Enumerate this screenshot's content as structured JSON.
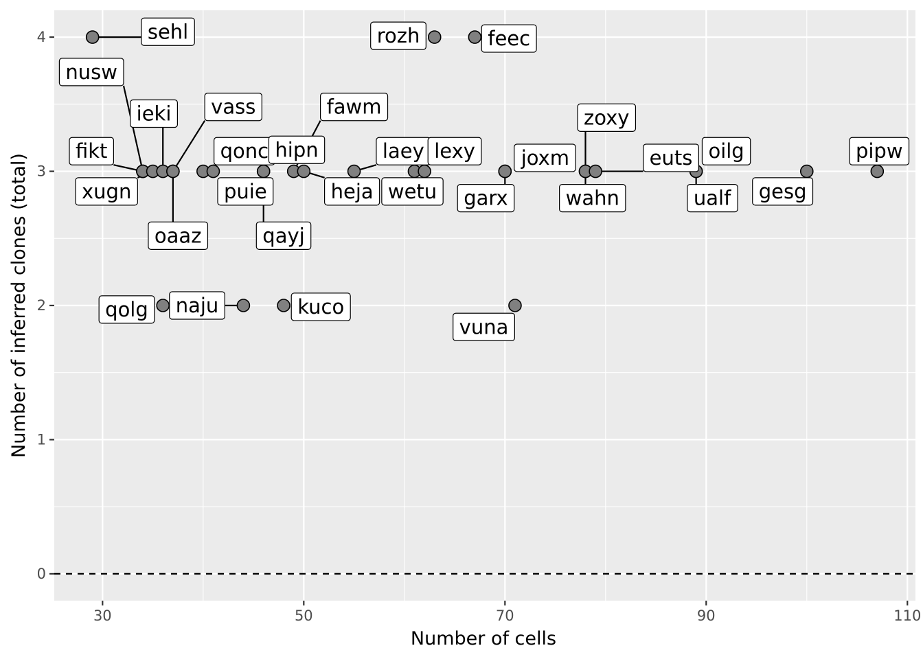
{
  "chart_data": {
    "type": "scatter",
    "title": "",
    "xlabel": "Number of cells",
    "ylabel": "Number of inferred clones (total)",
    "xlim": [
      25.2,
      110.8
    ],
    "ylim": [
      -0.2,
      4.2
    ],
    "x_ticks": [
      30,
      50,
      70,
      90,
      110
    ],
    "x_minor": [
      40,
      60,
      80,
      100
    ],
    "y_ticks": [
      0,
      1,
      2,
      3,
      4
    ],
    "y_minor": [
      0.5,
      1.5,
      2.5,
      3.5
    ],
    "grid": true,
    "legend": "none",
    "reference_line": {
      "y": 0,
      "style": "dashed"
    },
    "colors": {
      "panel": "#ebebeb",
      "point_fill": "#808080",
      "point_stroke": "#000000",
      "grid": "#ffffff",
      "label_box": "#ffffff"
    },
    "points": [
      {
        "name": "sehl",
        "x": 29,
        "y": 4,
        "lx": 36.5,
        "ly": 4.04
      },
      {
        "name": "rozh",
        "x": 63,
        "y": 4,
        "lx": 59.4,
        "ly": 4.01
      },
      {
        "name": "feec",
        "x": 67,
        "y": 4,
        "lx": 70.4,
        "ly": 3.99
      },
      {
        "name": "nusw",
        "x": 34,
        "y": 3,
        "lx": 28.9,
        "ly": 3.74
      },
      {
        "name": "fikt",
        "x": 34,
        "y": 3,
        "lx": 28.9,
        "ly": 3.15
      },
      {
        "name": "xugn",
        "x": 35,
        "y": 3,
        "lx": 30.4,
        "ly": 2.85
      },
      {
        "name": "ieki",
        "x": 36,
        "y": 3,
        "lx": 35.1,
        "ly": 3.43
      },
      {
        "name": "oaaz",
        "x": 37,
        "y": 3,
        "lx": 37.5,
        "ly": 2.52
      },
      {
        "name": "vass",
        "x": 37,
        "y": 3,
        "lx": 43.0,
        "ly": 3.48
      },
      {
        "name": "qonc",
        "x": 40,
        "y": 3,
        "lx": 44.1,
        "ly": 3.15
      },
      {
        "name": "puie",
        "x": 41,
        "y": 3,
        "lx": 44.2,
        "ly": 2.85
      },
      {
        "name": "hipn",
        "x": 46,
        "y": 3,
        "lx": 49.3,
        "ly": 3.16
      },
      {
        "name": "qayj",
        "x": 46,
        "y": 3,
        "lx": 48.0,
        "ly": 2.52
      },
      {
        "name": "fawm",
        "x": 49,
        "y": 3,
        "lx": 55.0,
        "ly": 3.48
      },
      {
        "name": "heja",
        "x": 50,
        "y": 3,
        "lx": 54.8,
        "ly": 2.85
      },
      {
        "name": "laey",
        "x": 55,
        "y": 3,
        "lx": 59.9,
        "ly": 3.15
      },
      {
        "name": "wetu",
        "x": 61,
        "y": 3,
        "lx": 60.8,
        "ly": 2.85
      },
      {
        "name": "lexy",
        "x": 62,
        "y": 3,
        "lx": 65.0,
        "ly": 3.15
      },
      {
        "name": "garx",
        "x": 70,
        "y": 3,
        "lx": 68.1,
        "ly": 2.8
      },
      {
        "name": "joxm",
        "x": 70,
        "y": 3,
        "lx": 74.0,
        "ly": 3.1
      },
      {
        "name": "zoxy",
        "x": 78,
        "y": 3,
        "lx": 80.1,
        "ly": 3.4
      },
      {
        "name": "wahn",
        "x": 78,
        "y": 3,
        "lx": 78.7,
        "ly": 2.8
      },
      {
        "name": "euts",
        "x": 79,
        "y": 3,
        "lx": 86.5,
        "ly": 3.1
      },
      {
        "name": "oilg",
        "x": 89,
        "y": 3,
        "lx": 92.0,
        "ly": 3.15
      },
      {
        "name": "ualf",
        "x": 89,
        "y": 3,
        "lx": 90.6,
        "ly": 2.8
      },
      {
        "name": "gesg",
        "x": 100,
        "y": 3,
        "lx": 97.6,
        "ly": 2.85
      },
      {
        "name": "pipw",
        "x": 107,
        "y": 3,
        "lx": 107.2,
        "ly": 3.15
      },
      {
        "name": "qolg",
        "x": 36,
        "y": 2,
        "lx": 32.4,
        "ly": 1.97
      },
      {
        "name": "naju",
        "x": 44,
        "y": 2,
        "lx": 39.4,
        "ly": 2.0
      },
      {
        "name": "kuco",
        "x": 48,
        "y": 2,
        "lx": 51.7,
        "ly": 1.99
      },
      {
        "name": "vuna",
        "x": 71,
        "y": 2,
        "lx": 67.9,
        "ly": 1.84
      }
    ]
  }
}
